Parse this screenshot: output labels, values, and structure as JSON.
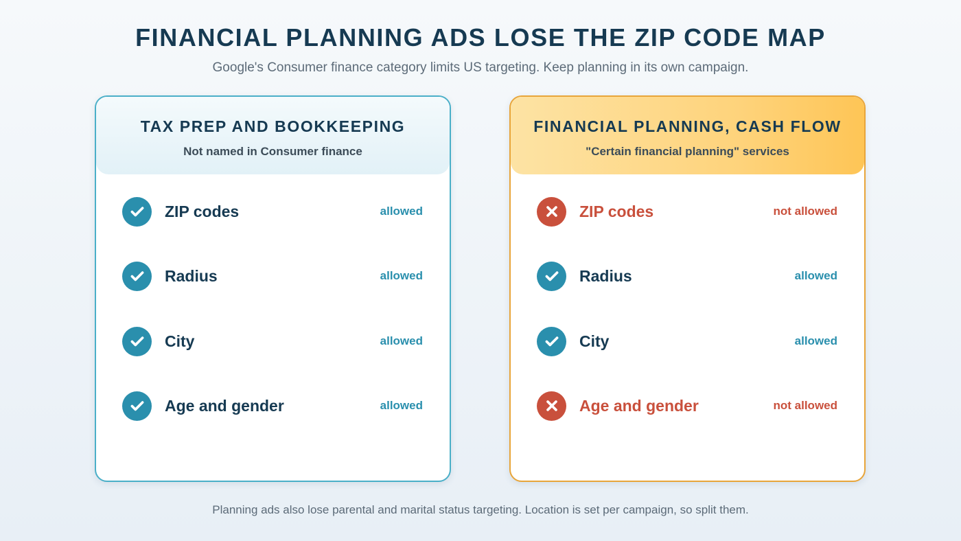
{
  "title": "FINANCIAL PLANNING ADS LOSE THE ZIP CODE MAP",
  "subtitle": "Google's Consumer finance category limits US targeting. Keep planning in its own campaign.",
  "footer": "Planning ads also lose parental and marital status targeting. Location is set per campaign, so split them.",
  "cards": [
    {
      "title": "TAX PREP AND BOOKKEEPING",
      "subtitle": "Not named in Consumer finance",
      "accent": "#4aafc8",
      "rows": [
        {
          "label": "ZIP codes",
          "status": "allowed",
          "icon": "check-icon"
        },
        {
          "label": "Radius",
          "status": "allowed",
          "icon": "check-icon"
        },
        {
          "label": "City",
          "status": "allowed",
          "icon": "check-icon"
        },
        {
          "label": "Age and gender",
          "status": "allowed",
          "icon": "check-icon"
        }
      ]
    },
    {
      "title": "FINANCIAL PLANNING, CASH FLOW",
      "subtitle": "\"Certain financial planning\" services",
      "accent": "#e8a53a",
      "rows": [
        {
          "label": "ZIP codes",
          "status": "not allowed",
          "icon": "cross-icon"
        },
        {
          "label": "Radius",
          "status": "allowed",
          "icon": "check-icon"
        },
        {
          "label": "City",
          "status": "allowed",
          "icon": "check-icon"
        },
        {
          "label": "Age and gender",
          "status": "not allowed",
          "icon": "cross-icon"
        }
      ]
    }
  ],
  "colors": {
    "allowed": "#2a8fad",
    "not_allowed": "#c9503c",
    "heading": "#163a52"
  }
}
